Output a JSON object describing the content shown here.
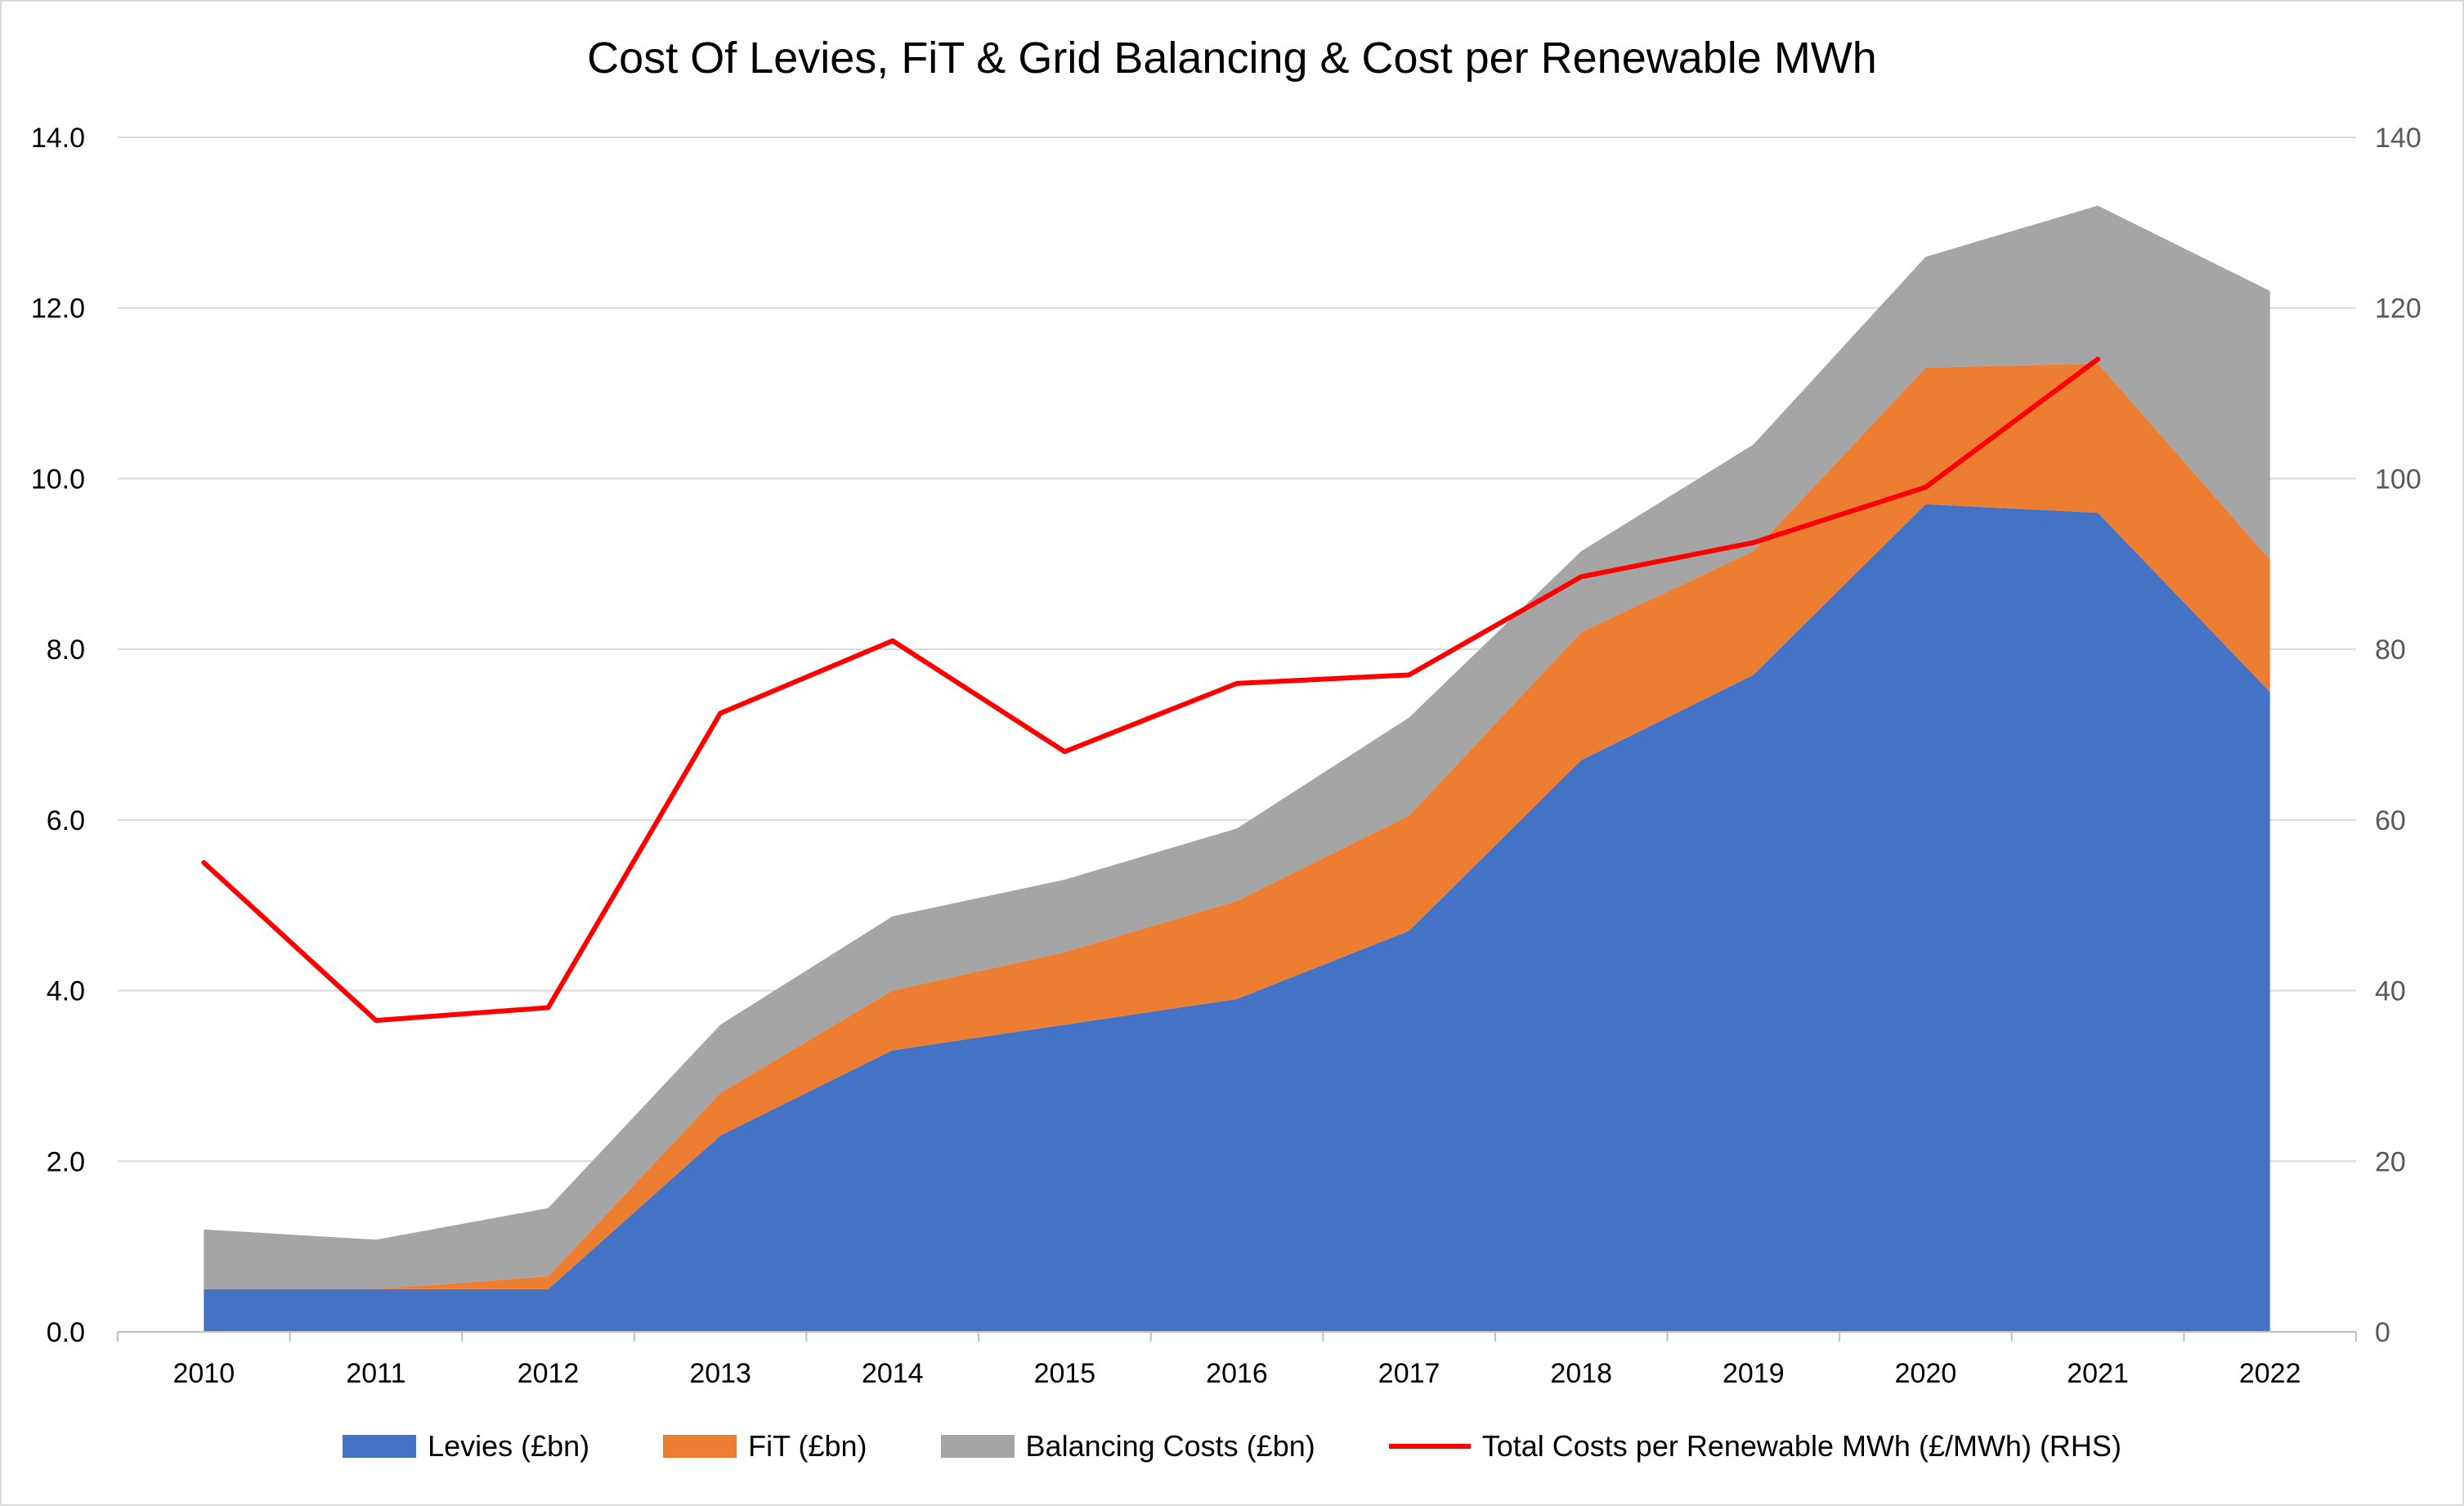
{
  "chart_data": {
    "type": "area",
    "title": "Cost Of Levies, FiT & Grid Balancing & Cost per Renewable MWh",
    "xlabel": "",
    "ylabel": "",
    "x": [
      "2010",
      "2011",
      "2012",
      "2013",
      "2014",
      "2015",
      "2016",
      "2017",
      "2018",
      "2019",
      "2020",
      "2021",
      "2022"
    ],
    "ylim": [
      0,
      14
    ],
    "y_ticks": [
      "0.0",
      "2.0",
      "4.0",
      "6.0",
      "8.0",
      "10.0",
      "12.0",
      "14.0"
    ],
    "y2lim": [
      0,
      140
    ],
    "y2_ticks": [
      "0",
      "20",
      "40",
      "60",
      "80",
      "100",
      "120",
      "140"
    ],
    "grid": true,
    "legend_position": "bottom",
    "series": [
      {
        "name": "Levies (£bn)",
        "kind": "stacked-area",
        "axis": "left",
        "color": "#4472C4",
        "values": [
          0.5,
          0.5,
          0.5,
          2.3,
          3.3,
          3.6,
          3.9,
          4.7,
          6.7,
          7.7,
          9.7,
          9.6,
          7.5
        ]
      },
      {
        "name": "FiT (£bn)",
        "kind": "stacked-area",
        "axis": "left",
        "color": "#ED7D31",
        "values": [
          0.0,
          0.0,
          0.15,
          0.5,
          0.7,
          0.85,
          1.15,
          1.35,
          1.5,
          1.45,
          1.6,
          1.75,
          1.55
        ]
      },
      {
        "name": "Balancing Costs (£bn)",
        "kind": "stacked-area",
        "axis": "left",
        "color": "#A5A5A5",
        "values": [
          0.7,
          0.58,
          0.8,
          0.8,
          0.87,
          0.85,
          0.85,
          1.15,
          0.95,
          1.25,
          1.3,
          1.85,
          3.15
        ]
      },
      {
        "name": "Total Costs per Renewable MWh (£/MWh) (RHS)",
        "kind": "line",
        "axis": "right",
        "color": "#FF0000",
        "values": [
          55,
          36.5,
          38,
          72.5,
          81,
          68,
          76,
          77,
          88.5,
          92.5,
          99,
          114,
          null
        ]
      }
    ]
  }
}
